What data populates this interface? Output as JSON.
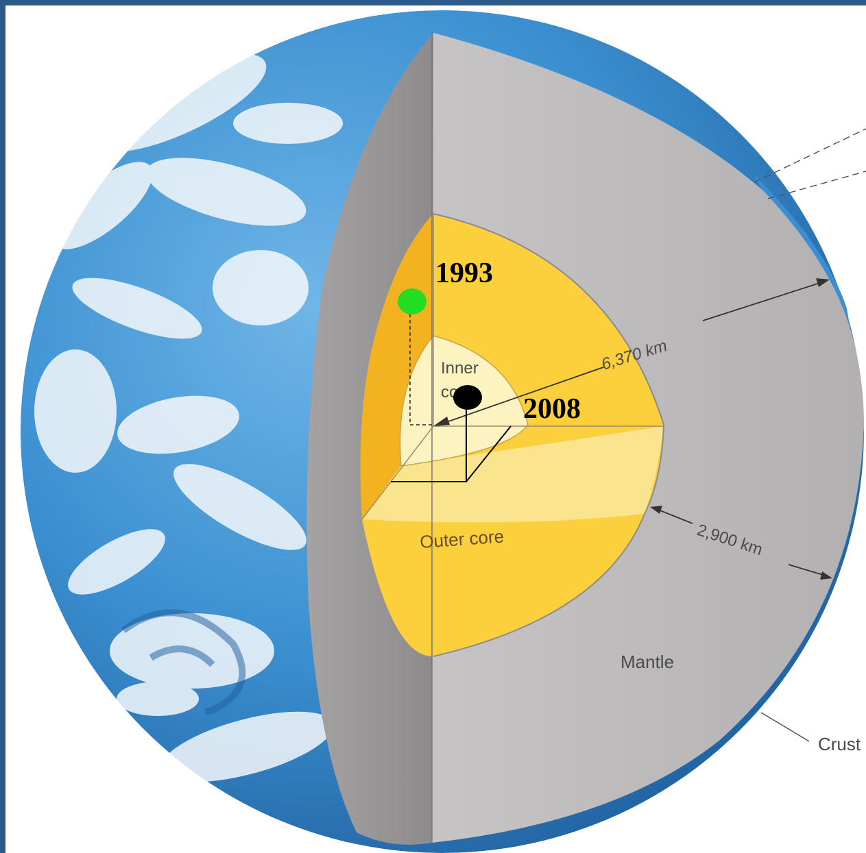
{
  "labels": {
    "inner_core": "Inner core",
    "inner_core_line1": "Inner",
    "inner_core_line2": "core",
    "outer_core": "Outer core",
    "mantle": "Mantle",
    "crust": "Crust",
    "radius": "6,370 km",
    "mantle_thickness": "2,900 km"
  },
  "markers": [
    {
      "year": "1993",
      "color": "#22dd22"
    },
    {
      "year": "2008",
      "color": "#000000"
    }
  ],
  "colors": {
    "frame": "#2c5a8a",
    "ocean": "#3b8fd0",
    "mantle": "#bdbabc",
    "outer_core": "#fbd03c",
    "inner_core": "#fdf3c0",
    "cut_face": "#a9a6a8"
  }
}
